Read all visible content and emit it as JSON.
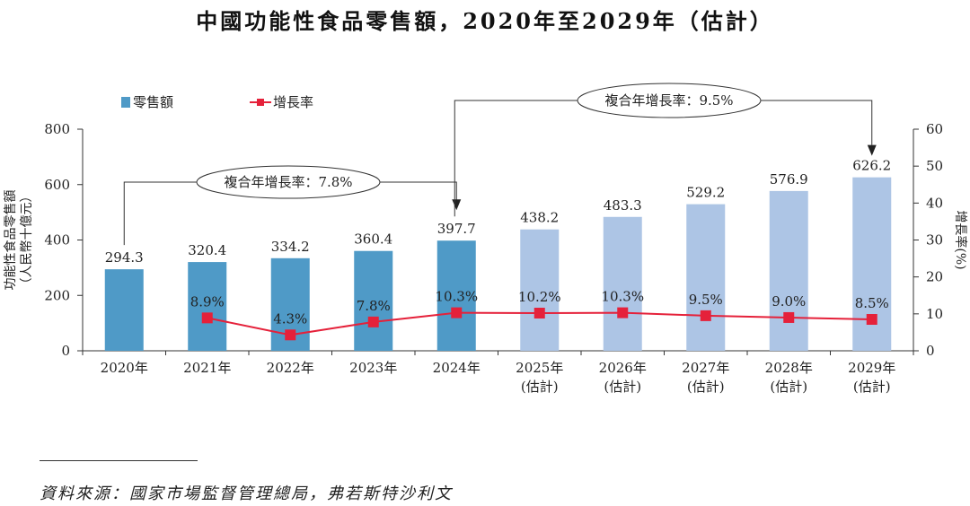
{
  "chart_data": {
    "type": "bar+line",
    "title": "中國功能性食品零售額，2020年至2029年（估計）",
    "categories": [
      "2020年",
      "2021年",
      "2022年",
      "2023年",
      "2024年",
      "2025年",
      "2026年",
      "2027年",
      "2028年",
      "2029年"
    ],
    "category_sublabels": [
      "",
      "",
      "",
      "",
      "",
      "(估計)",
      "(估計)",
      "(估計)",
      "(估計)",
      "(估計)"
    ],
    "series": [
      {
        "name": "零售額",
        "kind": "bar",
        "axis": "left",
        "values": [
          294.3,
          320.4,
          334.2,
          360.4,
          397.7,
          438.2,
          483.3,
          529.2,
          576.9,
          626.2
        ],
        "labels": [
          "294.3",
          "320.4",
          "334.2",
          "360.4",
          "397.7",
          "438.2",
          "483.3",
          "529.2",
          "576.9",
          "626.2"
        ],
        "color_actual": "#4f9ac7",
        "color_forecast": "#adc5e5",
        "forecast_from_index": 5
      },
      {
        "name": "增長率",
        "kind": "line",
        "axis": "right",
        "values": [
          null,
          8.9,
          4.3,
          7.8,
          10.3,
          10.2,
          10.3,
          9.5,
          9.0,
          8.5
        ],
        "labels": [
          "",
          "8.9%",
          "4.3%",
          "7.8%",
          "10.3%",
          "10.2%",
          "10.3%",
          "9.5%",
          "9.0%",
          "8.5%"
        ],
        "color": "#e5213a"
      }
    ],
    "y_left": {
      "label_line1": "功能性食品零售額",
      "label_line2": "（人民幣十億元）",
      "min": 0,
      "max": 800,
      "ticks": [
        0,
        200,
        400,
        600,
        800
      ],
      "tick_labels": [
        "0",
        "200",
        "400",
        "600",
        "800"
      ]
    },
    "y_right": {
      "label": "增長率(%)",
      "min": 0,
      "max": 60,
      "ticks": [
        0,
        10,
        20,
        30,
        40,
        50,
        60
      ],
      "tick_labels": [
        "0",
        "10",
        "20",
        "30",
        "40",
        "50",
        "60"
      ]
    },
    "annotations": [
      {
        "text": "複合年增長率：7.8%",
        "from_index": 0,
        "to_index": 4
      },
      {
        "text": "複合年增長率：9.5%",
        "from_index": 4,
        "to_index": 9
      }
    ],
    "legend": {
      "position": "top-left"
    }
  },
  "source": "資料來源：國家市場監督管理總局，弗若斯特沙利文"
}
